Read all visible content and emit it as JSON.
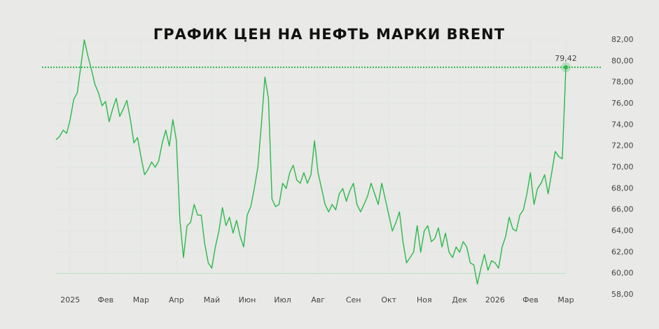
{
  "chart_data": {
    "type": "line",
    "title": "ГРАФИК ЦЕН НА НЕФТЬ МАРКИ BRENT",
    "color": "#2cb84b",
    "grid": true,
    "categories": [
      null,
      null,
      null,
      null,
      "2025",
      null,
      null,
      null,
      null,
      null,
      null,
      null,
      null,
      null,
      "Фев",
      null,
      null,
      null,
      null,
      null,
      null,
      null,
      null,
      null,
      "Мар",
      null,
      null,
      null,
      null,
      null,
      null,
      null,
      null,
      null,
      "Апр",
      null,
      null,
      null,
      null,
      null,
      null,
      null,
      null,
      null,
      "Май",
      null,
      null,
      null,
      null,
      null,
      null,
      null,
      null,
      null,
      "Июн",
      null,
      null,
      null,
      null,
      null,
      null,
      null,
      null,
      null,
      "Июл",
      null,
      null,
      null,
      null,
      null,
      null,
      null,
      null,
      null,
      "Авг",
      null,
      null,
      null,
      null,
      null,
      null,
      null,
      null,
      null,
      "Сен",
      null,
      null,
      null,
      null,
      null,
      null,
      null,
      null,
      null,
      "Окт",
      null,
      null,
      null,
      null,
      null,
      null,
      null,
      null,
      null,
      "Ноя",
      null,
      null,
      null,
      null,
      null,
      null,
      null,
      null,
      null,
      "Дек",
      null,
      null,
      null,
      null,
      null,
      null,
      null,
      null,
      null,
      "2026",
      null,
      null,
      null,
      null,
      null,
      null,
      null,
      null,
      null,
      "Фев",
      null,
      null,
      null,
      null,
      null,
      null,
      null,
      null,
      null,
      "Мар"
    ],
    "values": [
      72.6,
      72.9,
      73.5,
      73.2,
      74.5,
      76.4,
      77.0,
      79.5,
      82.0,
      80.5,
      79.2,
      77.8,
      77.0,
      75.8,
      76.2,
      74.3,
      75.5,
      76.5,
      74.8,
      75.5,
      76.3,
      74.5,
      72.3,
      72.8,
      71.0,
      69.3,
      69.8,
      70.5,
      70.0,
      70.6,
      72.3,
      73.5,
      72.0,
      74.5,
      72.5,
      65.0,
      61.5,
      64.5,
      64.8,
      66.5,
      65.5,
      65.5,
      62.8,
      61.0,
      60.5,
      62.5,
      64.0,
      66.2,
      64.5,
      65.3,
      63.8,
      65.0,
      63.5,
      62.5,
      65.5,
      66.3,
      68.0,
      70.0,
      74.0,
      78.5,
      76.5,
      67.0,
      66.3,
      66.5,
      68.5,
      68.0,
      69.5,
      70.2,
      68.8,
      68.5,
      69.5,
      68.5,
      69.3,
      72.5,
      69.5,
      68.0,
      66.5,
      65.8,
      66.5,
      66.0,
      67.5,
      68.0,
      66.8,
      67.8,
      68.5,
      66.5,
      65.8,
      66.5,
      67.3,
      68.5,
      67.5,
      66.5,
      68.5,
      67.0,
      65.5,
      64.0,
      64.8,
      65.8,
      63.0,
      61.0,
      61.5,
      62.0,
      64.5,
      62.0,
      64.0,
      64.5,
      63.0,
      63.3,
      64.3,
      62.5,
      63.8,
      62.0,
      61.5,
      62.5,
      62.0,
      63.0,
      62.5,
      61.0,
      60.8,
      59.0,
      60.5,
      61.8,
      60.3,
      61.2,
      61.0,
      60.5,
      62.5,
      63.5,
      65.3,
      64.2,
      64.0,
      65.5,
      66.0,
      67.5,
      69.5,
      66.5,
      68.0,
      68.5,
      69.3,
      67.5,
      69.5,
      71.5,
      71.0,
      70.8,
      79.42
    ],
    "value_labels": [
      null,
      null,
      null,
      null,
      null,
      null,
      null,
      null,
      null,
      null,
      null,
      null,
      null,
      null,
      null,
      null,
      null,
      null,
      null,
      null,
      null,
      null,
      null,
      null,
      null,
      null,
      null,
      null,
      null,
      null,
      null,
      null,
      null,
      null,
      null,
      null,
      null,
      null,
      null,
      null,
      null,
      null,
      null,
      null,
      null,
      null,
      null,
      null,
      null,
      null,
      null,
      null,
      null,
      null,
      null,
      null,
      null,
      null,
      null,
      null,
      null,
      null,
      null,
      null,
      null,
      null,
      null,
      null,
      null,
      null,
      null,
      null,
      null,
      null,
      null,
      null,
      null,
      null,
      null,
      null,
      null,
      null,
      null,
      null,
      null,
      null,
      null,
      null,
      null,
      null,
      null,
      null,
      null,
      null,
      null,
      null,
      null,
      null,
      null,
      null,
      null,
      null,
      null,
      null,
      null,
      null,
      null,
      null,
      null,
      null,
      null,
      null,
      null,
      null,
      null,
      null,
      null,
      null,
      null,
      null,
      null,
      null,
      null,
      null,
      null,
      null,
      null,
      null,
      null,
      null,
      null,
      null,
      null,
      null,
      null,
      null,
      null,
      null,
      null,
      null,
      null,
      null,
      null,
      null,
      "79,42"
    ],
    "ylim": [
      58,
      82
    ],
    "yticks": [
      {
        "value": 58,
        "label": "58,00"
      },
      {
        "value": 60,
        "label": "60,00"
      },
      {
        "value": 62,
        "label": "62,00"
      },
      {
        "value": 64,
        "label": "64,00"
      },
      {
        "value": 66,
        "label": "66,00"
      },
      {
        "value": 68,
        "label": "68,00"
      },
      {
        "value": 70,
        "label": "70,00"
      },
      {
        "value": 72,
        "label": "72,00"
      },
      {
        "value": 74,
        "label": "74,00"
      },
      {
        "value": 76,
        "label": "76,00"
      },
      {
        "value": 78,
        "label": "78,00"
      },
      {
        "value": 80,
        "label": "80,00"
      },
      {
        "value": 82,
        "label": "82,00"
      }
    ]
  }
}
